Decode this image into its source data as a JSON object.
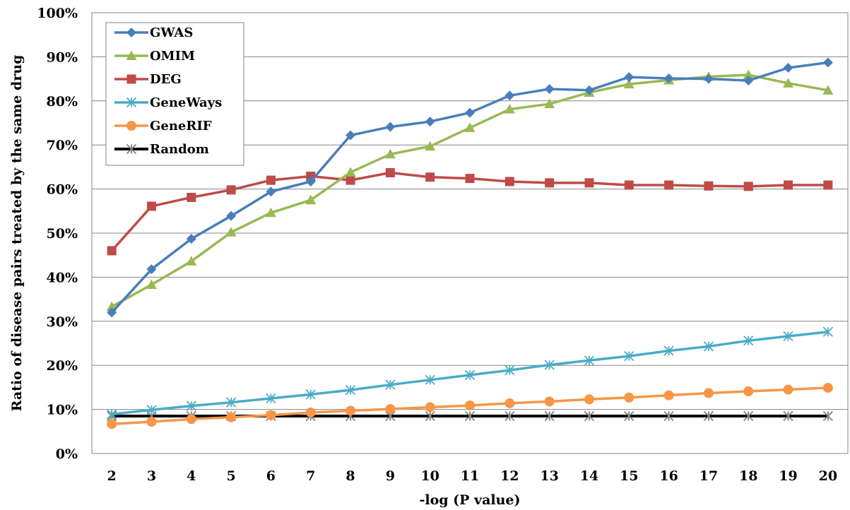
{
  "chart_data": {
    "type": "line",
    "title": "",
    "xlabel": "-log (P value)",
    "ylabel": "Ratio of disease pairs treated by the same drug",
    "x": [
      2,
      3,
      4,
      5,
      6,
      7,
      8,
      9,
      10,
      11,
      12,
      13,
      14,
      15,
      16,
      17,
      18,
      19,
      20
    ],
    "x_tick_labels": [
      "2",
      "3",
      "4",
      "5",
      "6",
      "7",
      "8",
      "9",
      "10",
      "11",
      "12",
      "13",
      "14",
      "15",
      "16",
      "17",
      "18",
      "19",
      "20"
    ],
    "ylim": [
      0,
      100
    ],
    "y_ticks": [
      0,
      10,
      20,
      30,
      40,
      50,
      60,
      70,
      80,
      90,
      100
    ],
    "y_tick_labels": [
      "0%",
      "10%",
      "20%",
      "30%",
      "40%",
      "50%",
      "60%",
      "70%",
      "80%",
      "90%",
      "100%"
    ],
    "grid": "horizontal",
    "legend_position": "top-left",
    "series": [
      {
        "name": "GWAS",
        "color": "#4a7ebb",
        "marker": "diamond",
        "values": [
          32.0,
          41.8,
          48.7,
          53.9,
          59.4,
          61.7,
          72.2,
          74.1,
          75.3,
          77.3,
          81.2,
          82.7,
          82.4,
          85.4,
          85.1,
          85.0,
          84.6,
          87.5,
          88.7
        ]
      },
      {
        "name": "OMIM",
        "color": "#98b954",
        "marker": "triangle",
        "values": [
          33.3,
          38.3,
          43.6,
          50.2,
          54.6,
          57.5,
          63.8,
          67.9,
          69.7,
          73.9,
          78.1,
          79.3,
          81.9,
          83.8,
          84.7,
          85.5,
          85.9,
          84.0,
          82.4
        ]
      },
      {
        "name": "DEG",
        "color": "#be4b48",
        "marker": "square",
        "values": [
          46.0,
          56.1,
          58.1,
          59.8,
          62.0,
          62.9,
          62.0,
          63.7,
          62.7,
          62.4,
          61.7,
          61.4,
          61.4,
          60.9,
          60.9,
          60.7,
          60.6,
          60.9,
          60.9
        ]
      },
      {
        "name": "GeneWays",
        "color": "#4bacc6",
        "marker": "asterisk",
        "values": [
          8.9,
          9.9,
          10.8,
          11.6,
          12.5,
          13.4,
          14.4,
          15.6,
          16.7,
          17.8,
          18.9,
          20.1,
          21.1,
          22.1,
          23.3,
          24.3,
          25.6,
          26.6,
          27.6
        ]
      },
      {
        "name": "GeneRIF",
        "color": "#f79646",
        "marker": "circle",
        "values": [
          6.7,
          7.2,
          7.8,
          8.2,
          8.7,
          9.3,
          9.7,
          10.1,
          10.5,
          10.9,
          11.4,
          11.8,
          12.3,
          12.7,
          13.2,
          13.7,
          14.1,
          14.5,
          14.9
        ]
      },
      {
        "name": "Random",
        "color": "#000000",
        "marker": "star",
        "values": [
          8.5,
          8.5,
          8.5,
          8.5,
          8.5,
          8.5,
          8.5,
          8.5,
          8.5,
          8.5,
          8.5,
          8.5,
          8.5,
          8.5,
          8.5,
          8.5,
          8.5,
          8.5,
          8.5
        ]
      }
    ]
  }
}
